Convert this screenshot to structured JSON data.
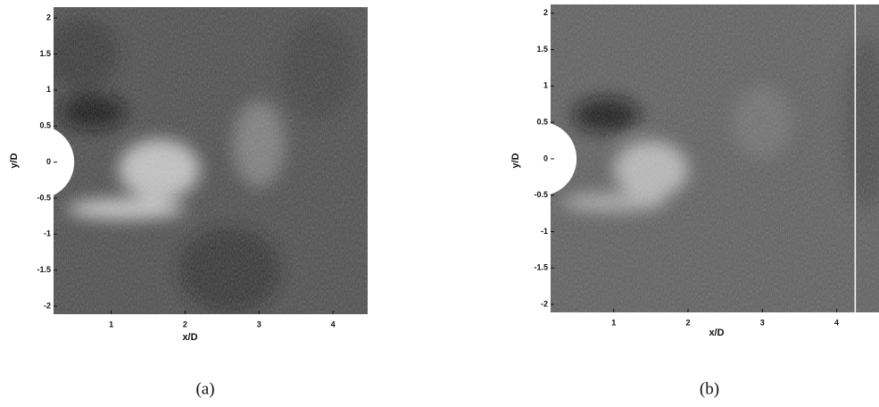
{
  "figure": {
    "panels": [
      {
        "caption": "(a)",
        "xlabel": "x/D",
        "ylabel": "y/D",
        "xlim": [
          0.22,
          4.47
        ],
        "ylim": [
          -2.11,
          2.15
        ],
        "xticks": [
          1,
          2,
          3,
          4
        ],
        "yticks": [
          2,
          1.5,
          1,
          0.5,
          0,
          -0.5,
          -1,
          -1.5,
          -2
        ]
      },
      {
        "caption": "(b)",
        "xlabel": "x/D",
        "ylabel": "y/D",
        "xlim": [
          0.15,
          4.57
        ],
        "ylim": [
          -2.11,
          2.12
        ],
        "xticks": [
          1,
          2,
          3,
          4
        ],
        "yticks": [
          2,
          1.5,
          1,
          0.5,
          0,
          -0.5,
          -1,
          -1.5,
          -2
        ]
      }
    ]
  }
}
